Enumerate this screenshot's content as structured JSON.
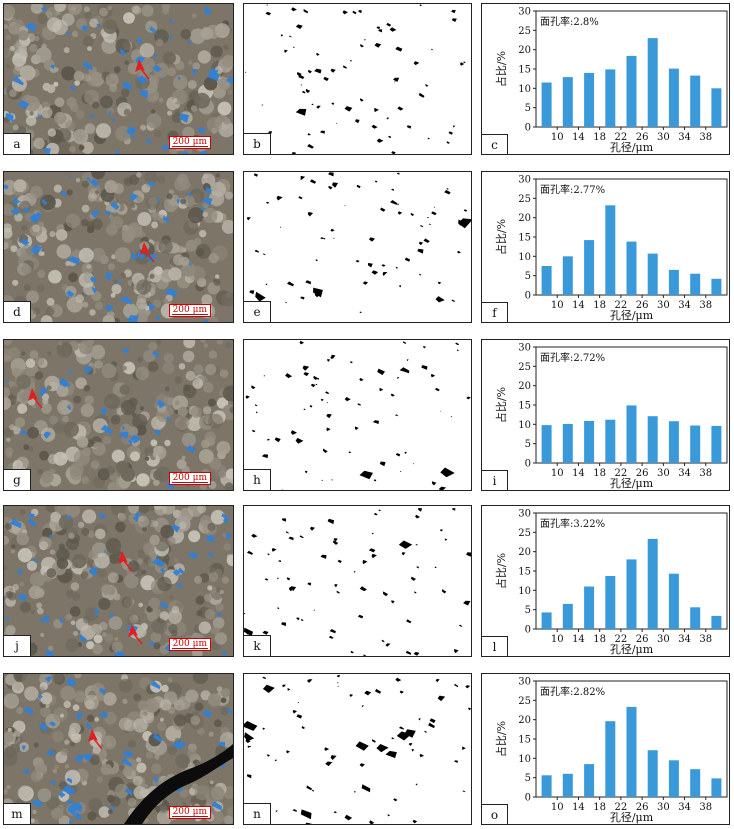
{
  "colors": {
    "bar": "#3a99d8",
    "pore_blue": "#2f7fd6",
    "arrow": "#e02020"
  },
  "axis_common": {
    "ylabel": "占比/%",
    "xlabel": "孔径/μm"
  },
  "rows": [
    {
      "photo_label": "a",
      "binary_label": "b",
      "chart_label": "c",
      "scale": "200 μm",
      "arrows": 1
    },
    {
      "photo_label": "d",
      "binary_label": "e",
      "chart_label": "f",
      "scale": "200 μm",
      "arrows": 1
    },
    {
      "photo_label": "g",
      "binary_label": "h",
      "chart_label": "i",
      "scale": "200 μm",
      "arrows": 1
    },
    {
      "photo_label": "j",
      "binary_label": "k",
      "chart_label": "l",
      "scale": "200 μm",
      "arrows": 2
    },
    {
      "photo_label": "m",
      "binary_label": "n",
      "chart_label": "o",
      "scale": "200 μm",
      "arrows": 1
    }
  ],
  "chart_data": [
    {
      "type": "bar",
      "annotation": "面孔率:2.8%",
      "xlabel": "孔径/μm",
      "ylabel": "占比/%",
      "ylim": [
        0,
        30
      ],
      "yticks": [
        0,
        5,
        10,
        15,
        20,
        25,
        30
      ],
      "xticks": [
        "10",
        "14",
        "18",
        "22",
        "26",
        "30",
        "34",
        "38"
      ],
      "values": [
        11.5,
        12.9,
        14.0,
        14.9,
        18.4,
        23.0,
        15.1,
        13.3,
        10.0
      ]
    },
    {
      "type": "bar",
      "annotation": "面孔率:2.77%",
      "xlabel": "孔径/μm",
      "ylabel": "占比/%",
      "ylim": [
        0,
        30
      ],
      "yticks": [
        0,
        5,
        10,
        15,
        20,
        25,
        30
      ],
      "xticks": [
        "10",
        "14",
        "18",
        "22",
        "26",
        "30",
        "34",
        "38"
      ],
      "values": [
        7.5,
        10.0,
        14.2,
        23.2,
        13.8,
        10.7,
        6.5,
        5.5,
        4.2
      ]
    },
    {
      "type": "bar",
      "annotation": "面孔率:2.72%",
      "xlabel": "孔径/μm",
      "ylabel": "占比/%",
      "ylim": [
        0,
        30
      ],
      "yticks": [
        0,
        5,
        10,
        15,
        20,
        25,
        30
      ],
      "xticks": [
        "10",
        "14",
        "18",
        "22",
        "26",
        "30",
        "34",
        "38"
      ],
      "values": [
        9.8,
        10.1,
        10.9,
        11.2,
        14.9,
        12.1,
        10.8,
        9.7,
        9.6
      ]
    },
    {
      "type": "bar",
      "annotation": "面孔率:3.22%",
      "xlabel": "孔径/μm",
      "ylabel": "占比/%",
      "ylim": [
        0,
        30
      ],
      "yticks": [
        0,
        5,
        10,
        15,
        20,
        25,
        30
      ],
      "xticks": [
        "10",
        "14",
        "18",
        "22",
        "26",
        "30",
        "34",
        "38"
      ],
      "values": [
        4.3,
        6.5,
        11.0,
        13.7,
        18.0,
        23.3,
        14.3,
        5.6,
        3.4
      ]
    },
    {
      "type": "bar",
      "annotation": "面孔率:2.82%",
      "xlabel": "孔径/μm",
      "ylabel": "占比/%",
      "ylim": [
        0,
        30
      ],
      "yticks": [
        0,
        5,
        10,
        15,
        20,
        25,
        30
      ],
      "xticks": [
        "10",
        "14",
        "18",
        "22",
        "26",
        "30",
        "34",
        "38"
      ],
      "values": [
        5.6,
        6.0,
        8.5,
        19.6,
        23.3,
        12.1,
        9.5,
        7.2,
        4.8
      ]
    }
  ]
}
